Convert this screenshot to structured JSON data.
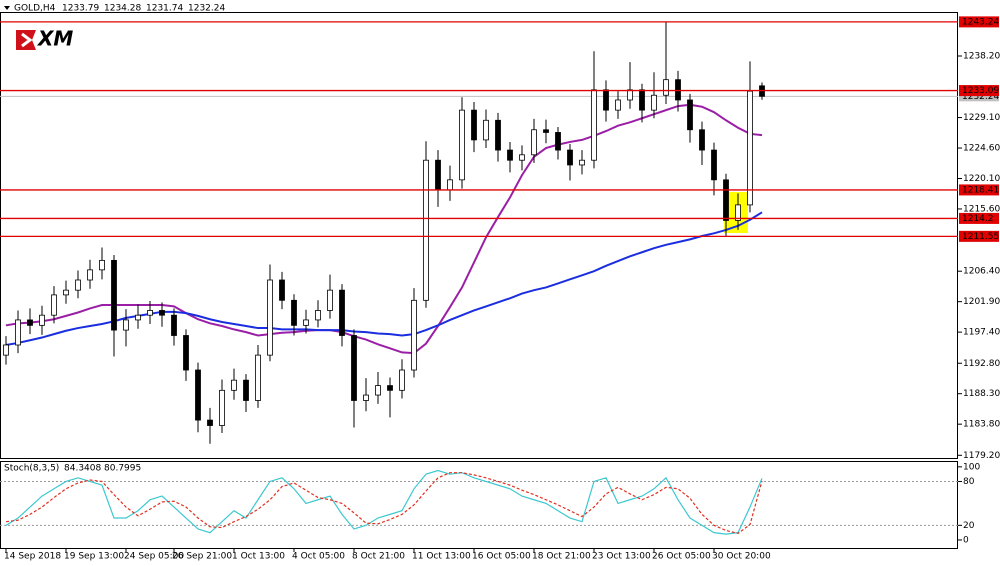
{
  "chart_data": {
    "type": "candlestick",
    "symbol": "GOLD,H4",
    "ohlc_header": [
      1233.79,
      1234.28,
      1231.74,
      1232.24
    ],
    "logo": "XM",
    "ylim": [
      1178.8,
      1244.7
    ],
    "yticks": [
      {
        "value": 1238.2,
        "label": "1238.20"
      },
      {
        "value": 1229.1,
        "label": "1229.10"
      },
      {
        "value": 1224.6,
        "label": "1224.60"
      },
      {
        "value": 1220.1,
        "label": "1220.10"
      },
      {
        "value": 1215.6,
        "label": "1215.60"
      },
      {
        "value": 1206.4,
        "label": "1206.40"
      },
      {
        "value": 1201.9,
        "label": "1201.90"
      },
      {
        "value": 1197.4,
        "label": "1197.40"
      },
      {
        "value": 1192.8,
        "label": "1192.80"
      },
      {
        "value": 1188.3,
        "label": "1188.30"
      },
      {
        "value": 1183.8,
        "label": "1183.80"
      },
      {
        "value": 1179.2,
        "label": "1179.20"
      }
    ],
    "grid": false,
    "up_color": "#ffffff",
    "down_color": "#000000",
    "categories": [
      "14 Sep 2018",
      null,
      null,
      null,
      null,
      "19 Sep 13:00",
      null,
      null,
      null,
      null,
      "24 Sep 05:00",
      null,
      null,
      null,
      "26 Sep 21:00",
      null,
      null,
      null,
      null,
      "1 Oct 13:00",
      null,
      null,
      null,
      null,
      "4 Oct 05:00",
      null,
      null,
      null,
      null,
      "8 Oct 21:00",
      null,
      null,
      null,
      null,
      "11 Oct 13:00",
      null,
      null,
      null,
      null,
      "16 Oct 05:00",
      null,
      null,
      null,
      null,
      "18 Oct 21:00",
      null,
      null,
      null,
      null,
      "23 Oct 13:00",
      null,
      null,
      null,
      null,
      "26 Oct 05:00",
      null,
      null,
      null,
      null,
      "30 Oct 20:00",
      null,
      null,
      null,
      null
    ],
    "candles": [
      [
        1194.0,
        1196.8,
        1192.6,
        1195.5
      ],
      [
        1195.5,
        1200.6,
        1194.3,
        1199.2
      ],
      [
        1199.2,
        1200.9,
        1197.1,
        1198.4
      ],
      [
        1198.4,
        1201.3,
        1197.0,
        1199.9
      ],
      [
        1199.9,
        1204.2,
        1198.7,
        1202.9
      ],
      [
        1202.9,
        1205.0,
        1201.6,
        1203.6
      ],
      [
        1203.6,
        1206.5,
        1202.4,
        1205.1
      ],
      [
        1205.1,
        1208.1,
        1203.8,
        1206.6
      ],
      [
        1206.6,
        1209.9,
        1205.2,
        1208.0
      ],
      [
        1208.0,
        1208.8,
        1193.8,
        1197.7
      ],
      [
        1197.7,
        1200.8,
        1195.3,
        1199.2
      ],
      [
        1199.2,
        1201.5,
        1197.9,
        1199.9
      ],
      [
        1199.9,
        1202.0,
        1198.6,
        1200.6
      ],
      [
        1200.6,
        1201.8,
        1198.2,
        1199.9
      ],
      [
        1199.9,
        1200.9,
        1195.4,
        1196.9
      ],
      [
        1196.9,
        1197.8,
        1190.2,
        1191.8
      ],
      [
        1191.8,
        1192.9,
        1182.6,
        1184.4
      ],
      [
        1184.4,
        1186.2,
        1180.9,
        1183.6
      ],
      [
        1183.6,
        1190.4,
        1182.5,
        1188.8
      ],
      [
        1188.8,
        1192.0,
        1187.4,
        1190.3
      ],
      [
        1190.3,
        1191.2,
        1185.6,
        1187.3
      ],
      [
        1187.3,
        1195.5,
        1186.2,
        1194.0
      ],
      [
        1194.0,
        1207.4,
        1193.1,
        1205.1
      ],
      [
        1205.1,
        1206.3,
        1200.8,
        1202.1
      ],
      [
        1202.1,
        1203.0,
        1196.9,
        1198.4
      ],
      [
        1198.4,
        1200.7,
        1197.2,
        1199.2
      ],
      [
        1199.2,
        1202.1,
        1198.1,
        1200.6
      ],
      [
        1200.6,
        1205.9,
        1199.4,
        1203.6
      ],
      [
        1203.6,
        1204.5,
        1195.3,
        1196.9
      ],
      [
        1196.9,
        1197.8,
        1183.3,
        1187.3
      ],
      [
        1187.3,
        1190.6,
        1185.7,
        1188.1
      ],
      [
        1188.1,
        1191.5,
        1186.8,
        1189.5
      ],
      [
        1189.5,
        1190.7,
        1184.8,
        1188.8
      ],
      [
        1188.8,
        1193.4,
        1187.6,
        1191.8
      ],
      [
        1191.8,
        1203.9,
        1190.7,
        1202.1
      ],
      [
        1202.1,
        1225.6,
        1201.0,
        1222.8
      ],
      [
        1222.8,
        1224.3,
        1215.9,
        1218.4
      ],
      [
        1218.4,
        1222.0,
        1216.8,
        1219.9
      ],
      [
        1219.9,
        1232.1,
        1218.6,
        1230.2
      ],
      [
        1230.2,
        1231.4,
        1224.0,
        1225.8
      ],
      [
        1225.8,
        1230.3,
        1224.6,
        1228.7
      ],
      [
        1228.7,
        1229.8,
        1222.6,
        1224.3
      ],
      [
        1224.3,
        1225.5,
        1221.0,
        1222.8
      ],
      [
        1222.8,
        1225.0,
        1221.3,
        1223.6
      ],
      [
        1223.6,
        1228.9,
        1222.4,
        1227.3
      ],
      [
        1227.3,
        1228.8,
        1225.3,
        1226.9
      ],
      [
        1226.9,
        1227.7,
        1222.9,
        1224.3
      ],
      [
        1224.3,
        1225.2,
        1219.8,
        1222.1
      ],
      [
        1222.1,
        1224.3,
        1220.7,
        1222.8
      ],
      [
        1222.8,
        1238.9,
        1221.6,
        1233.2
      ],
      [
        1233.2,
        1234.6,
        1228.5,
        1230.2
      ],
      [
        1230.2,
        1233.0,
        1228.9,
        1231.7
      ],
      [
        1231.7,
        1237.3,
        1230.4,
        1233.2
      ],
      [
        1233.2,
        1234.1,
        1228.4,
        1230.2
      ],
      [
        1230.2,
        1235.8,
        1229.0,
        1232.4
      ],
      [
        1232.4,
        1243.2,
        1231.1,
        1234.7
      ],
      [
        1234.7,
        1236.0,
        1230.0,
        1231.7
      ],
      [
        1231.7,
        1232.6,
        1225.4,
        1227.3
      ],
      [
        1227.3,
        1228.5,
        1222.1,
        1224.3
      ],
      [
        1224.3,
        1225.4,
        1217.6,
        1219.9
      ],
      [
        1219.9,
        1220.8,
        1211.6,
        1213.9
      ],
      [
        1213.9,
        1217.9,
        1212.5,
        1216.2
      ],
      [
        1216.2,
        1237.4,
        1215.1,
        1233.0
      ]
    ],
    "ma_lines": [
      {
        "color": "#9b1fa6",
        "values": [
          1198.4,
          1198.7,
          1198.8,
          1199.0,
          1199.3,
          1199.8,
          1200.3,
          1200.9,
          1201.4,
          1201.4,
          1201.4,
          1201.4,
          1201.4,
          1201.4,
          1201.2,
          1200.2,
          1199.3,
          1198.7,
          1198.3,
          1197.8,
          1197.4,
          1196.9,
          1197.1,
          1197.3,
          1197.4,
          1197.6,
          1197.7,
          1197.7,
          1197.4,
          1196.8,
          1196.3,
          1195.6,
          1195.0,
          1194.4,
          1194.3,
          1195.7,
          1198.3,
          1201.1,
          1204.0,
          1207.7,
          1211.4,
          1214.4,
          1217.3,
          1220.6,
          1223.3,
          1224.6,
          1225.1,
          1225.5,
          1225.8,
          1226.4,
          1227.1,
          1227.9,
          1228.4,
          1229.0,
          1229.6,
          1230.2,
          1230.8,
          1231.0,
          1230.7,
          1229.9,
          1228.7,
          1227.6,
          1226.7,
          1226.5
        ]
      },
      {
        "color": "#1a2ee0",
        "values": [
          1195.5,
          1195.8,
          1196.2,
          1196.6,
          1197.1,
          1197.6,
          1198.0,
          1198.3,
          1198.6,
          1199.0,
          1199.5,
          1199.8,
          1200.1,
          1200.4,
          1200.4,
          1200.2,
          1199.8,
          1199.3,
          1198.9,
          1198.6,
          1198.3,
          1198.0,
          1198.0,
          1197.8,
          1197.8,
          1197.8,
          1197.7,
          1197.7,
          1197.7,
          1197.5,
          1197.4,
          1197.2,
          1197.1,
          1196.9,
          1197.1,
          1197.7,
          1198.4,
          1199.2,
          1199.9,
          1200.6,
          1201.2,
          1201.8,
          1202.4,
          1203.1,
          1203.6,
          1204.0,
          1204.6,
          1205.2,
          1205.8,
          1206.4,
          1207.2,
          1207.9,
          1208.6,
          1209.2,
          1209.8,
          1210.3,
          1210.7,
          1211.1,
          1211.6,
          1212.0,
          1212.5,
          1213.1,
          1214.0,
          1215.1
        ]
      }
    ],
    "levels": [
      {
        "value": 1243.24,
        "color": "#e00000"
      },
      {
        "value": 1233.09,
        "color": "#e00000"
      },
      {
        "value": 1218.41,
        "color": "#e00000"
      },
      {
        "value": 1214.2,
        "color": "#e00000"
      },
      {
        "value": 1211.55,
        "color": "#e00000"
      }
    ],
    "indicator": {
      "title": "Stoch(8,3,5)",
      "ylim": [
        -11,
        108
      ],
      "yticks": [
        0,
        20,
        80,
        100
      ],
      "levels": [
        20,
        80
      ],
      "k": {
        "color": "#3cc8d0",
        "values": [
          20,
          30,
          45,
          60,
          70,
          80,
          85,
          80,
          75,
          30,
          30,
          40,
          55,
          60,
          45,
          30,
          15,
          10,
          25,
          40,
          30,
          55,
          80,
          85,
          70,
          50,
          55,
          60,
          35,
          15,
          20,
          30,
          35,
          40,
          70,
          90,
          95,
          90,
          92,
          85,
          80,
          75,
          70,
          60,
          55,
          50,
          40,
          30,
          25,
          80,
          85,
          50,
          55,
          60,
          70,
          85,
          55,
          30,
          20,
          10,
          8,
          10,
          45,
          84.3408
        ]
      },
      "d": {
        "color": "#e03020",
        "values": [
          25,
          27,
          35,
          45,
          58,
          70,
          78,
          82,
          80,
          62,
          45,
          33,
          42,
          52,
          53,
          45,
          30,
          18,
          17,
          25,
          32,
          42,
          55,
          73,
          78,
          68,
          58,
          55,
          50,
          37,
          23,
          22,
          28,
          35,
          48,
          67,
          85,
          92,
          92,
          89,
          85,
          80,
          75,
          68,
          62,
          55,
          48,
          40,
          32,
          45,
          63,
          72,
          63,
          55,
          62,
          72,
          70,
          57,
          35,
          20,
          13,
          9,
          21,
          80.7995
        ]
      }
    }
  }
}
